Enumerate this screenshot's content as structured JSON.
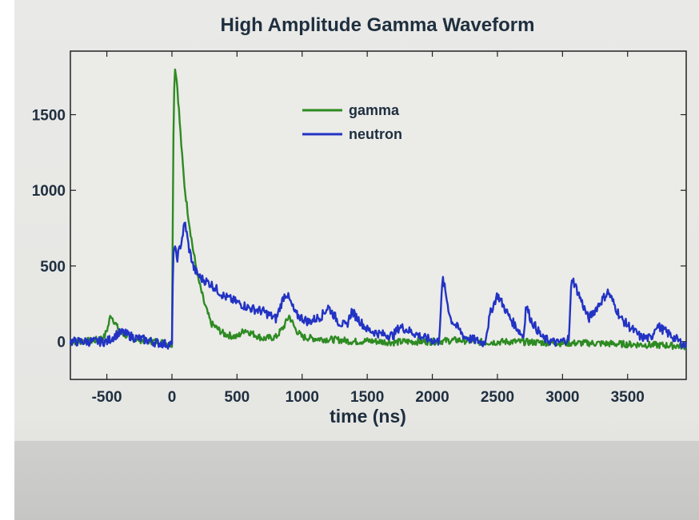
{
  "chart_data": {
    "type": "line",
    "title": "High Amplitude Gamma Waveform",
    "xlabel": "time (ns)",
    "ylabel": "",
    "xlim": [
      -780,
      3950
    ],
    "ylim": [
      -250,
      1920
    ],
    "xticks": [
      -500,
      0,
      500,
      1000,
      1500,
      2000,
      2500,
      3000,
      3500
    ],
    "yticks": [
      0,
      500,
      1000,
      1500
    ],
    "xtick_labels": [
      "-500",
      "0",
      "500",
      "1000",
      "1500",
      "2000",
      "2500",
      "3000",
      "3500"
    ],
    "ytick_labels": [
      "0",
      "500",
      "1000",
      "1500"
    ],
    "grid": false,
    "legend_position": "top-center",
    "series": [
      {
        "name": "gamma",
        "color": "#2e8b22",
        "x": [
          -780,
          -600,
          -520,
          -490,
          -470,
          -440,
          -400,
          -300,
          -200,
          -100,
          -50,
          0,
          5,
          15,
          25,
          40,
          60,
          80,
          100,
          130,
          160,
          200,
          250,
          300,
          400,
          500,
          560,
          600,
          700,
          800,
          860,
          900,
          950,
          1000,
          1100,
          1200,
          1300,
          1400,
          1500,
          1600,
          1700,
          1800,
          2000,
          2200,
          2400,
          2600,
          2800,
          3000,
          3200,
          3400,
          3600,
          3800,
          3950
        ],
        "y": [
          0,
          5,
          30,
          100,
          180,
          130,
          60,
          20,
          5,
          0,
          -10,
          -20,
          700,
          1650,
          1820,
          1700,
          1450,
          1200,
          1000,
          800,
          620,
          420,
          250,
          120,
          50,
          30,
          80,
          60,
          20,
          30,
          100,
          170,
          80,
          30,
          20,
          15,
          10,
          0,
          5,
          0,
          -5,
          0,
          0,
          10,
          -5,
          0,
          -5,
          -10,
          -10,
          -15,
          -20,
          -25,
          -30
        ]
      },
      {
        "name": "neutron",
        "color": "#2233c4",
        "x": [
          -780,
          -500,
          -420,
          -380,
          -300,
          -200,
          -100,
          0,
          10,
          20,
          40,
          70,
          100,
          130,
          170,
          220,
          300,
          400,
          500,
          600,
          700,
          800,
          860,
          880,
          950,
          1050,
          1150,
          1200,
          1280,
          1340,
          1380,
          1500,
          1600,
          1700,
          1750,
          1850,
          1950,
          2050,
          2080,
          2140,
          2250,
          2400,
          2450,
          2500,
          2600,
          2700,
          2720,
          2760,
          2850,
          2960,
          3050,
          3070,
          3200,
          3300,
          3350,
          3450,
          3600,
          3680,
          3720,
          3850,
          3950
        ],
        "y": [
          0,
          0,
          50,
          60,
          30,
          10,
          -10,
          -20,
          600,
          620,
          550,
          650,
          790,
          620,
          480,
          420,
          380,
          300,
          260,
          220,
          200,
          150,
          300,
          320,
          180,
          130,
          170,
          230,
          130,
          100,
          200,
          80,
          50,
          40,
          100,
          60,
          20,
          0,
          420,
          150,
          30,
          -10,
          200,
          310,
          150,
          30,
          240,
          140,
          20,
          -10,
          20,
          430,
          150,
          270,
          330,
          150,
          30,
          20,
          110,
          30,
          -30
        ]
      }
    ]
  }
}
